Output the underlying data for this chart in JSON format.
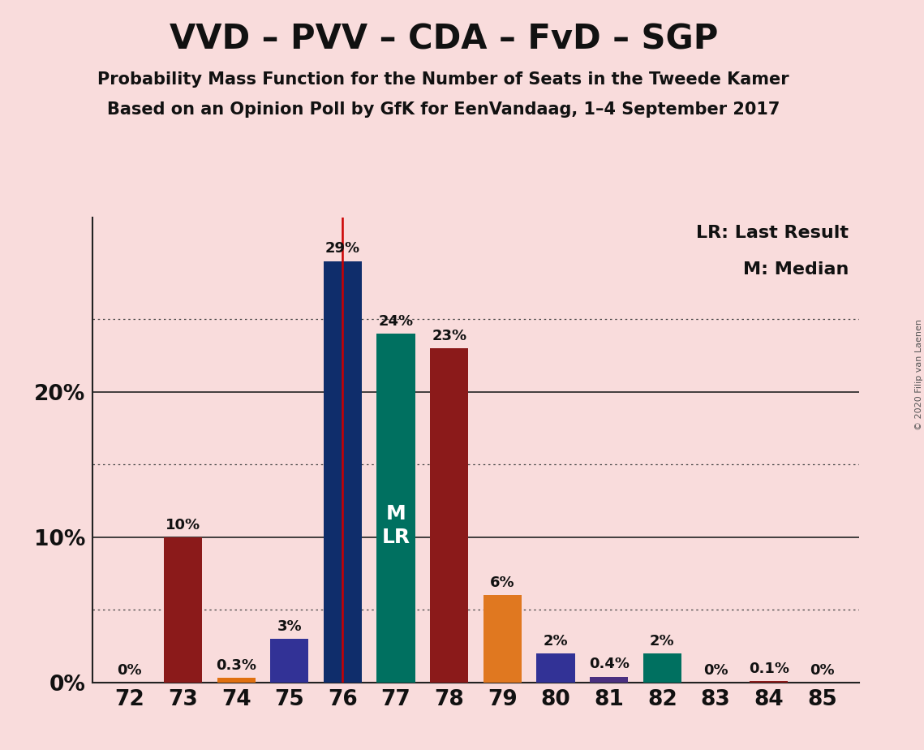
{
  "title": "VVD – PVV – CDA – FvD – SGP",
  "subtitle1": "Probability Mass Function for the Number of Seats in the Tweede Kamer",
  "subtitle2": "Based on an Opinion Poll by GfK for EenVandaag, 1–4 September 2017",
  "copyright": "© 2020 Filip van Laenen",
  "legend_lr": "LR: Last Result",
  "legend_m": "M: Median",
  "seats": [
    72,
    73,
    74,
    75,
    76,
    77,
    78,
    79,
    80,
    81,
    82,
    83,
    84,
    85
  ],
  "values": [
    0.0,
    10.0,
    0.3,
    3.0,
    29.0,
    24.0,
    23.0,
    6.0,
    2.0,
    0.4,
    2.0,
    0.0,
    0.1,
    0.0
  ],
  "labels": [
    "0%",
    "10%",
    "0.3%",
    "3%",
    "29%",
    "24%",
    "23%",
    "6%",
    "2%",
    "0.4%",
    "2%",
    "0%",
    "0.1%",
    "0%"
  ],
  "colors": [
    "#8B1A1A",
    "#8B1A1A",
    "#E07010",
    "#323296",
    "#0F2D6B",
    "#007060",
    "#8B1A1A",
    "#E07820",
    "#323296",
    "#4B3080",
    "#007060",
    "#8B1A1A",
    "#8B1A1A",
    "#323296"
  ],
  "lr_seat": 76,
  "median_seat": 77,
  "background_color": "#F9DCDC",
  "ylim": [
    0,
    32
  ],
  "solid_lines": [
    0,
    10,
    20
  ],
  "dotted_lines": [
    5,
    15,
    25
  ],
  "bar_width": 0.72,
  "label_fontsize": 13,
  "axis_fontsize": 19,
  "title_fontsize": 30,
  "subtitle_fontsize": 15,
  "legend_fontsize": 16
}
